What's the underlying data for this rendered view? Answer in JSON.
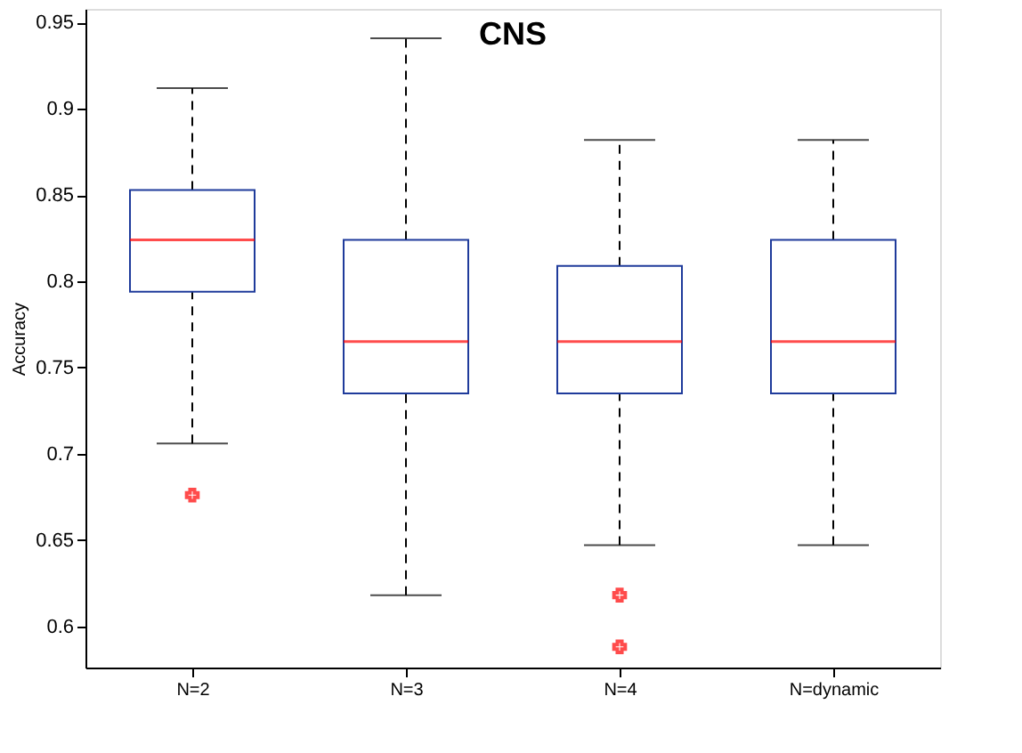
{
  "chart_data": {
    "type": "box",
    "title": "CNS",
    "ylabel": "Accuracy",
    "categories": [
      "N=2",
      "N=3",
      "N=4",
      "N=dynamic"
    ],
    "boxes": [
      {
        "low": 0.706,
        "q1": 0.794,
        "median": 0.824,
        "q3": 0.853,
        "high": 0.912,
        "outliers": [
          0.676
        ]
      },
      {
        "low": 0.618,
        "q1": 0.735,
        "median": 0.765,
        "q3": 0.824,
        "high": 0.941
      },
      {
        "low": 0.647,
        "q1": 0.735,
        "median": 0.765,
        "q3": 0.809,
        "high": 0.882,
        "outliers": [
          0.618,
          0.588
        ]
      },
      {
        "low": 0.647,
        "q1": 0.735,
        "median": 0.765,
        "q3": 0.824,
        "high": 0.882
      }
    ],
    "ylim": [
      0.576,
      0.958
    ],
    "yticks": [
      0.6,
      0.65,
      0.7,
      0.75,
      0.8,
      0.85,
      0.9,
      0.95
    ],
    "grid": false
  }
}
